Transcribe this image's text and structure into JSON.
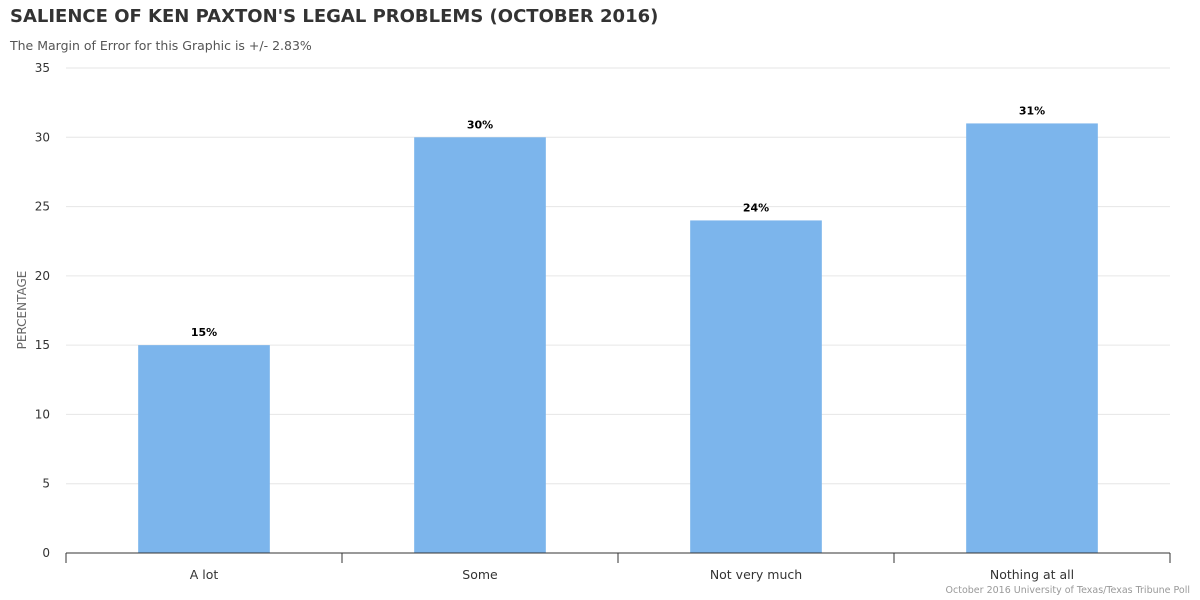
{
  "header": {
    "title": "SALIENCE OF KEN PAXTON'S LEGAL PROBLEMS (OCTOBER 2016)",
    "subtitle": "The Margin of Error for this Graphic is +/- 2.83%"
  },
  "footer": {
    "credit": "October 2016 University of Texas/Texas Tribune Poll"
  },
  "colors": {
    "bar": "#7cb5ec",
    "grid": "#e6e6e6",
    "axis": "#333333"
  },
  "chart_data": {
    "type": "bar",
    "title": "SALIENCE OF KEN PAXTON'S LEGAL PROBLEMS (OCTOBER 2016)",
    "subtitle": "The Margin of Error for this Graphic is +/- 2.83%",
    "categories": [
      "A lot",
      "Some",
      "Not very much",
      "Nothing at all"
    ],
    "values": [
      15,
      30,
      24,
      31
    ],
    "data_labels": [
      "15%",
      "30%",
      "24%",
      "31%"
    ],
    "xlabel": "",
    "ylabel": "PERCENTAGE",
    "ylim": [
      0,
      35
    ],
    "yticks": [
      0,
      5,
      10,
      15,
      20,
      25,
      30,
      35
    ],
    "ytick_labels": [
      "0",
      "5",
      "10",
      "15",
      "20",
      "25",
      "30",
      "35"
    ],
    "grid": true,
    "legend": "none"
  }
}
